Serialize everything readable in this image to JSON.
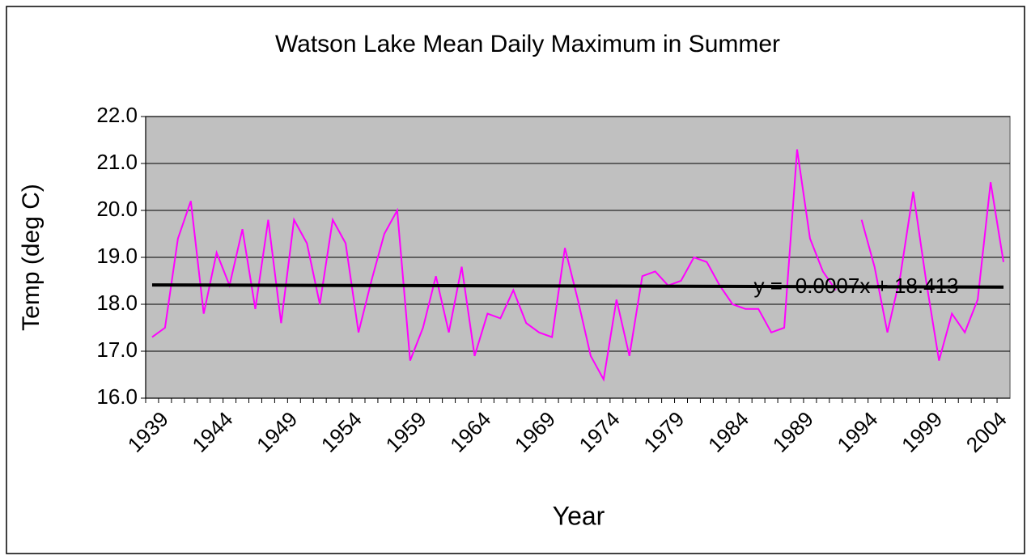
{
  "chart_data": {
    "type": "line",
    "title": "Watson Lake Mean Daily Maximum in Summer",
    "xlabel": "Year",
    "ylabel": "Temp (deg C)",
    "categories": [
      "1939",
      null,
      null,
      null,
      null,
      "1944",
      null,
      null,
      null,
      null,
      "1949",
      null,
      null,
      null,
      null,
      "1954",
      null,
      null,
      null,
      null,
      "1959",
      null,
      null,
      null,
      null,
      "1964",
      null,
      null,
      null,
      null,
      "1969",
      null,
      null,
      null,
      null,
      "1974",
      null,
      null,
      null,
      null,
      "1979",
      null,
      null,
      null,
      null,
      "1984",
      null,
      null,
      null,
      null,
      "1989",
      null,
      null,
      null,
      null,
      "1994",
      null,
      null,
      null,
      null,
      "1999",
      null,
      null,
      null,
      null,
      "2004",
      null
    ],
    "series": [
      {
        "color": "#ff00ff",
        "values": [
          17.3,
          17.5,
          19.4,
          20.2,
          17.8,
          19.1,
          18.4,
          19.6,
          17.9,
          19.8,
          17.6,
          19.8,
          19.3,
          18.0,
          19.8,
          19.3,
          17.4,
          18.5,
          19.5,
          20.0,
          16.8,
          17.5,
          18.6,
          17.4,
          18.8,
          16.9,
          17.8,
          17.7,
          18.3,
          17.6,
          17.4,
          17.3,
          19.2,
          18.1,
          16.9,
          16.4,
          18.1,
          16.9,
          18.6,
          18.7,
          18.4,
          18.5,
          19.0,
          18.9,
          18.4,
          18.0,
          17.9,
          17.9,
          17.4,
          17.5,
          21.3,
          19.4,
          18.7,
          18.3,
          null,
          19.8,
          18.8,
          17.4,
          18.6,
          20.4,
          18.5,
          16.8,
          17.8,
          17.4,
          18.1,
          20.6,
          18.9
        ]
      }
    ],
    "trendline": {
      "slope": -0.0007,
      "intercept": 18.413,
      "color": "#000000",
      "label": "y = -0.0007x + 18.413"
    },
    "ylim": [
      16,
      22
    ],
    "yticks": [
      {
        "value": 16,
        "label": "16.0"
      },
      {
        "value": 17,
        "label": "17.0"
      },
      {
        "value": 18,
        "label": "18.0"
      },
      {
        "value": 19,
        "label": "19.0"
      },
      {
        "value": 20,
        "label": "20.0"
      },
      {
        "value": 21,
        "label": "21.0"
      },
      {
        "value": 22,
        "label": "22.0"
      }
    ],
    "grid": true,
    "plot_background": "#c0c0c0"
  }
}
